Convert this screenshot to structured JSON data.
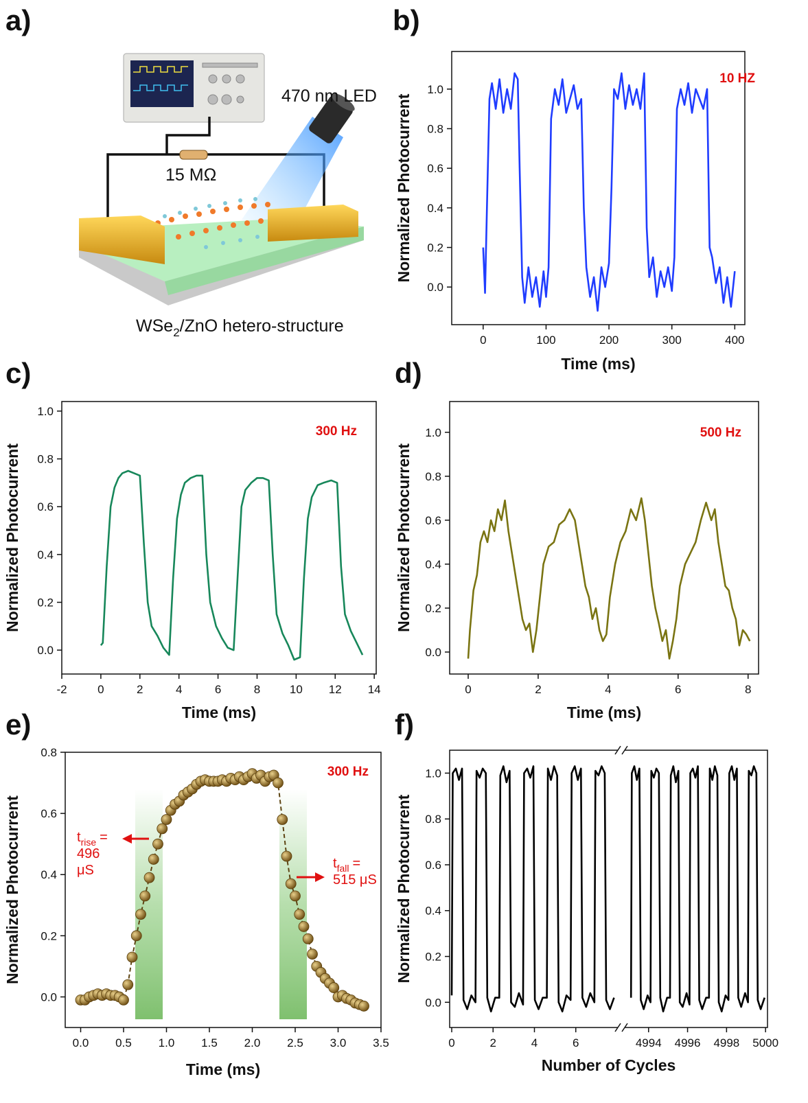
{
  "schematic": {
    "label": "a)",
    "led": "470 nm LED",
    "resistor": "15 MΩ",
    "structure": {
      "prefix": "WSe",
      "subscript": "2",
      "suffix": "/ZnO hetero-structure"
    }
  },
  "chart_data": [
    {
      "type": "line",
      "label": "b)",
      "ylabel": "Normalized Photocurrent",
      "xlabel": "Time (ms)",
      "note": "10 HZ",
      "color": "#1f3cff",
      "xlim": [
        -50,
        416
      ],
      "ylim": [
        -0.19,
        1.19
      ],
      "xticks": [
        0,
        100,
        200,
        300,
        400
      ],
      "yticks": [
        {
          "value": 0,
          "label": "0.0"
        },
        0.2,
        0.4,
        0.6,
        0.8,
        {
          "value": 1,
          "label": "1.0"
        }
      ],
      "x": [
        0,
        3,
        6,
        10,
        14,
        20,
        26,
        32,
        38,
        44,
        50,
        55,
        58,
        62,
        66,
        72,
        78,
        84,
        90,
        96,
        100,
        104,
        108,
        114,
        120,
        126,
        132,
        138,
        144,
        150,
        156,
        160,
        164,
        170,
        176,
        182,
        188,
        194,
        200,
        204,
        208,
        214,
        220,
        226,
        232,
        238,
        244,
        250,
        256,
        260,
        264,
        270,
        276,
        282,
        288,
        294,
        300,
        304,
        308,
        314,
        320,
        326,
        332,
        338,
        344,
        350,
        356,
        360,
        364,
        370,
        376,
        382,
        388,
        394,
        400
      ],
      "values": [
        0.2,
        -0.03,
        0.4,
        0.95,
        1.03,
        0.9,
        1.05,
        0.88,
        1.0,
        0.9,
        1.08,
        1.05,
        0.6,
        0.05,
        -0.08,
        0.1,
        -0.05,
        0.05,
        -0.1,
        0.08,
        -0.05,
        0.1,
        0.85,
        1.0,
        0.92,
        1.05,
        0.88,
        0.95,
        1.02,
        0.9,
        0.95,
        0.4,
        0.1,
        -0.05,
        0.05,
        -0.12,
        0.1,
        0.0,
        0.12,
        0.5,
        1.0,
        0.95,
        1.08,
        0.9,
        1.02,
        0.92,
        1.0,
        0.9,
        1.08,
        0.3,
        0.05,
        0.15,
        -0.05,
        0.08,
        0.0,
        0.1,
        -0.02,
        0.15,
        0.9,
        1.0,
        0.92,
        1.03,
        0.88,
        1.0,
        0.95,
        0.9,
        1.0,
        0.2,
        0.15,
        0.02,
        0.1,
        -0.08,
        0.05,
        -0.1,
        0.08
      ]
    },
    {
      "type": "line",
      "label": "c)",
      "ylabel": "Normalized Photocurrent",
      "xlabel": "Time (ms)",
      "note": "300 Hz",
      "color": "#17875a",
      "xlim": [
        -2,
        14.1
      ],
      "ylim": [
        -0.1,
        1.04
      ],
      "xticks": [
        -2,
        0,
        2,
        4,
        6,
        8,
        10,
        12,
        14
      ],
      "yticks": [
        {
          "value": 0,
          "label": "0.0"
        },
        0.2,
        0.4,
        0.6,
        0.8,
        {
          "value": 1,
          "label": "1.0"
        }
      ],
      "x": [
        0,
        0.1,
        0.3,
        0.5,
        0.7,
        0.9,
        1.1,
        1.4,
        1.7,
        2.0,
        2.2,
        2.4,
        2.6,
        2.9,
        3.2,
        3.5,
        3.7,
        3.9,
        4.1,
        4.3,
        4.6,
        4.9,
        5.2,
        5.4,
        5.6,
        5.9,
        6.2,
        6.5,
        6.8,
        7.0,
        7.2,
        7.4,
        7.7,
        8.0,
        8.3,
        8.6,
        8.8,
        9.0,
        9.3,
        9.6,
        9.9,
        10.2,
        10.4,
        10.6,
        10.8,
        11.1,
        11.4,
        11.8,
        12.1,
        12.3,
        12.5,
        12.8,
        13.1,
        13.4
      ],
      "values": [
        0.02,
        0.03,
        0.35,
        0.6,
        0.68,
        0.72,
        0.74,
        0.75,
        0.74,
        0.73,
        0.45,
        0.2,
        0.1,
        0.06,
        0.01,
        -0.02,
        0.3,
        0.55,
        0.65,
        0.7,
        0.72,
        0.73,
        0.73,
        0.4,
        0.2,
        0.1,
        0.05,
        0.01,
        0.0,
        0.3,
        0.6,
        0.67,
        0.7,
        0.72,
        0.72,
        0.71,
        0.4,
        0.15,
        0.07,
        0.02,
        -0.04,
        -0.03,
        0.3,
        0.55,
        0.64,
        0.69,
        0.7,
        0.71,
        0.7,
        0.35,
        0.15,
        0.08,
        0.03,
        -0.02
      ]
    },
    {
      "type": "line",
      "label": "d)",
      "ylabel": "Normalized Photocurrent",
      "xlabel": "Time (ms)",
      "note": "500 Hz",
      "color": "#7a7412",
      "xlim": [
        -0.53,
        8.3
      ],
      "ylim": [
        -0.1,
        1.14
      ],
      "xticks": [
        0,
        2,
        4,
        6,
        8
      ],
      "yticks": [
        {
          "value": 0,
          "label": "0.0"
        },
        0.2,
        0.4,
        0.6,
        0.8,
        {
          "value": 1,
          "label": "1.0"
        }
      ],
      "x": [
        0,
        0.05,
        0.15,
        0.25,
        0.35,
        0.45,
        0.55,
        0.65,
        0.75,
        0.85,
        0.95,
        1.05,
        1.15,
        1.25,
        1.35,
        1.45,
        1.55,
        1.65,
        1.75,
        1.85,
        1.95,
        2.05,
        2.15,
        2.3,
        2.45,
        2.6,
        2.75,
        2.9,
        3.05,
        3.15,
        3.25,
        3.35,
        3.45,
        3.55,
        3.65,
        3.75,
        3.85,
        3.95,
        4.05,
        4.2,
        4.35,
        4.5,
        4.65,
        4.8,
        4.95,
        5.05,
        5.15,
        5.25,
        5.35,
        5.45,
        5.55,
        5.65,
        5.75,
        5.85,
        5.95,
        6.05,
        6.2,
        6.35,
        6.5,
        6.65,
        6.8,
        6.95,
        7.05,
        7.15,
        7.25,
        7.35,
        7.45,
        7.55,
        7.65,
        7.75,
        7.85,
        7.95,
        8.05
      ],
      "values": [
        -0.03,
        0.1,
        0.28,
        0.35,
        0.5,
        0.55,
        0.5,
        0.6,
        0.55,
        0.65,
        0.6,
        0.69,
        0.55,
        0.45,
        0.35,
        0.25,
        0.15,
        0.1,
        0.13,
        0.0,
        0.1,
        0.25,
        0.4,
        0.48,
        0.5,
        0.58,
        0.6,
        0.65,
        0.6,
        0.5,
        0.4,
        0.3,
        0.25,
        0.15,
        0.2,
        0.1,
        0.05,
        0.08,
        0.25,
        0.4,
        0.5,
        0.55,
        0.65,
        0.6,
        0.7,
        0.6,
        0.45,
        0.3,
        0.2,
        0.13,
        0.05,
        0.1,
        -0.03,
        0.05,
        0.15,
        0.3,
        0.4,
        0.45,
        0.5,
        0.6,
        0.68,
        0.6,
        0.65,
        0.5,
        0.4,
        0.3,
        0.28,
        0.2,
        0.15,
        0.03,
        0.1,
        0.08,
        0.05
      ]
    },
    {
      "type": "line",
      "label": "e)",
      "ylabel": "Normalized Photocurrent",
      "xlabel": "Time (ms)",
      "note": "300 Hz",
      "color": "#5e4514",
      "markers": true,
      "xlim": [
        -0.18,
        3.5
      ],
      "ylim": [
        -0.1,
        0.8
      ],
      "xticks": [
        {
          "value": 0,
          "label": "0.0"
        },
        0.5,
        {
          "value": 1,
          "label": "1.0"
        },
        1.5,
        {
          "value": 2,
          "label": "2.0"
        },
        2.5,
        {
          "value": 3,
          "label": "3.0"
        },
        3.5
      ],
      "yticks": [
        {
          "value": 0,
          "label": "0.0"
        },
        0.2,
        0.4,
        0.6,
        0.8
      ],
      "x": [
        0,
        0.05,
        0.1,
        0.15,
        0.2,
        0.25,
        0.3,
        0.35,
        0.4,
        0.45,
        0.5,
        0.55,
        0.6,
        0.65,
        0.7,
        0.75,
        0.8,
        0.85,
        0.9,
        0.95,
        1.0,
        1.05,
        1.1,
        1.15,
        1.2,
        1.25,
        1.3,
        1.35,
        1.4,
        1.45,
        1.5,
        1.55,
        1.6,
        1.65,
        1.7,
        1.75,
        1.8,
        1.85,
        1.9,
        1.95,
        2.0,
        2.05,
        2.1,
        2.15,
        2.2,
        2.25,
        2.3,
        2.35,
        2.4,
        2.45,
        2.5,
        2.55,
        2.6,
        2.65,
        2.7,
        2.75,
        2.8,
        2.85,
        2.9,
        2.95,
        3.0,
        3.05,
        3.1,
        3.15,
        3.2,
        3.25,
        3.3
      ],
      "values": [
        -0.01,
        -0.01,
        0.0,
        0.005,
        0.01,
        0.005,
        0.01,
        0.005,
        0.005,
        0.0,
        -0.01,
        0.04,
        0.13,
        0.2,
        0.27,
        0.33,
        0.39,
        0.45,
        0.5,
        0.55,
        0.58,
        0.61,
        0.63,
        0.64,
        0.66,
        0.67,
        0.68,
        0.695,
        0.705,
        0.71,
        0.705,
        0.705,
        0.705,
        0.71,
        0.705,
        0.715,
        0.71,
        0.72,
        0.71,
        0.72,
        0.73,
        0.715,
        0.725,
        0.705,
        0.72,
        0.725,
        0.7,
        0.58,
        0.46,
        0.37,
        0.33,
        0.27,
        0.23,
        0.19,
        0.14,
        0.1,
        0.08,
        0.06,
        0.045,
        0.03,
        0.0,
        0.005,
        -0.005,
        -0.01,
        -0.02,
        -0.025,
        -0.03
      ],
      "annotations": [
        {
          "symbol": "t",
          "subscript": "rise",
          "lines": [
            "=",
            "496",
            "μS"
          ]
        },
        {
          "symbol": "t",
          "subscript": "fall",
          "lines": [
            "=",
            "515 μS"
          ]
        }
      ]
    },
    {
      "type": "line",
      "label": "f)",
      "ylabel": "Normalized Photocurrent",
      "xlabel": "Number of Cycles",
      "color": "#000000",
      "ylim": [
        -0.11,
        1.1
      ],
      "yticks": [
        {
          "value": 0,
          "label": "0.0"
        },
        0.2,
        0.4,
        0.6,
        0.8,
        {
          "value": 1,
          "label": "1.0"
        }
      ],
      "segments": [
        {
          "xlim": [
            -0.1,
            8.2
          ],
          "xticks": [
            0,
            2,
            4,
            6
          ],
          "x": [
            0,
            0.05,
            0.2,
            0.35,
            0.5,
            0.57,
            0.75,
            0.95,
            1.15,
            1.2,
            1.35,
            1.5,
            1.65,
            1.72,
            1.9,
            2.1,
            2.3,
            2.35,
            2.5,
            2.65,
            2.8,
            2.87,
            3.05,
            3.25,
            3.45,
            3.5,
            3.65,
            3.8,
            3.95,
            4.02,
            4.2,
            4.4,
            4.6,
            4.65,
            4.8,
            4.95,
            5.1,
            5.17,
            5.35,
            5.55,
            5.75,
            5.8,
            5.95,
            6.1,
            6.25,
            6.32,
            6.5,
            6.7,
            6.9,
            6.95,
            7.1,
            7.25,
            7.4,
            7.47,
            7.65,
            7.85
          ],
          "values": [
            0.03,
            1.0,
            1.02,
            0.97,
            1.02,
            0.01,
            -0.03,
            0.03,
            0.0,
            1.01,
            0.98,
            1.02,
            1.0,
            0.02,
            -0.04,
            0.02,
            0.02,
            0.99,
            1.03,
            0.96,
            1.01,
            0.0,
            -0.02,
            0.04,
            -0.01,
            1.0,
            1.02,
            0.98,
            1.03,
            0.01,
            -0.03,
            0.02,
            0.02,
            1.02,
            0.97,
            1.03,
            0.99,
            0.0,
            -0.04,
            0.03,
            0.01,
            1.0,
            1.03,
            0.97,
            1.02,
            0.02,
            -0.02,
            0.04,
            0.0,
            1.01,
            0.99,
            1.03,
            1.0,
            0.01,
            -0.03,
            0.02
          ]
        },
        {
          "xlim": [
            4992.6,
            5000.1
          ],
          "xticks": [
            4994,
            4996,
            4998,
            5000
          ],
          "x": [
            4993.1,
            4993.14,
            4993.27,
            4993.4,
            4993.53,
            4993.6,
            4993.75,
            4993.95,
            4994.1,
            4994.14,
            4994.27,
            4994.4,
            4994.53,
            4994.6,
            4994.75,
            4994.95,
            4995.1,
            4995.14,
            4995.27,
            4995.4,
            4995.53,
            4995.6,
            4995.75,
            4995.95,
            4996.1,
            4996.14,
            4996.27,
            4996.4,
            4996.53,
            4996.6,
            4996.75,
            4996.95,
            4997.1,
            4997.14,
            4997.27,
            4997.4,
            4997.53,
            4997.6,
            4997.75,
            4997.95,
            4998.1,
            4998.14,
            4998.27,
            4998.4,
            4998.53,
            4998.6,
            4998.75,
            4998.95,
            4999.1,
            4999.14,
            4999.27,
            4999.4,
            4999.53,
            4999.6,
            4999.75,
            4999.95
          ],
          "values": [
            0.02,
            1.0,
            1.03,
            0.97,
            1.02,
            0.01,
            -0.03,
            0.03,
            0.0,
            1.01,
            0.98,
            1.02,
            1.0,
            0.02,
            -0.04,
            0.02,
            0.02,
            0.99,
            1.03,
            0.96,
            1.01,
            0.0,
            -0.02,
            0.04,
            -0.01,
            1.0,
            1.02,
            0.98,
            1.03,
            0.01,
            -0.03,
            0.02,
            0.02,
            1.02,
            0.97,
            1.03,
            0.99,
            0.0,
            -0.04,
            0.03,
            0.01,
            1.0,
            1.03,
            0.97,
            1.02,
            0.02,
            -0.02,
            0.04,
            0.0,
            1.01,
            0.99,
            1.03,
            1.0,
            0.01,
            -0.03,
            0.02
          ]
        }
      ]
    }
  ]
}
